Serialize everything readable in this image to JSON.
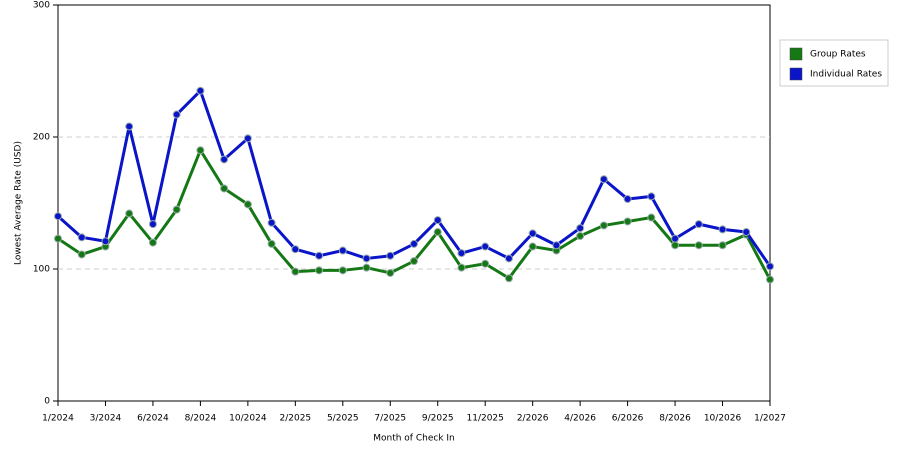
{
  "chart_data": {
    "type": "line",
    "x_label": "Month of Check In",
    "y_label": "Lowest Average Rate (USD)",
    "categories": [
      "1/2024",
      null,
      "3/2024",
      null,
      "6/2024",
      null,
      "8/2024",
      null,
      "10/2024",
      null,
      "2/2025",
      null,
      "5/2025",
      null,
      "7/2025",
      null,
      "9/2025",
      null,
      "11/2025",
      null,
      "2/2026",
      null,
      "4/2026",
      null,
      "6/2026",
      null,
      "8/2026",
      null,
      "10/2026",
      null,
      "1/2027"
    ],
    "series": [
      {
        "name": "Group Rates",
        "color": "#147814",
        "values": [
          123,
          111,
          117,
          142,
          120,
          145,
          190,
          161,
          149,
          119,
          98,
          99,
          99,
          101,
          97,
          106,
          128,
          101,
          104,
          93,
          117,
          114,
          125,
          133,
          136,
          139,
          118,
          118,
          118,
          126,
          92
        ]
      },
      {
        "name": "Individual Rates",
        "color": "#0a14c8",
        "values": [
          140,
          124,
          121,
          208,
          134,
          217,
          235,
          183,
          199,
          135,
          115,
          110,
          114,
          108,
          110,
          119,
          137,
          112,
          117,
          108,
          127,
          118,
          131,
          168,
          153,
          155,
          123,
          134,
          130,
          128,
          102
        ]
      }
    ],
    "ylim": [
      0,
      300
    ],
    "yticks": [
      0,
      100,
      200,
      300
    ],
    "grid": true,
    "legend": "right"
  }
}
